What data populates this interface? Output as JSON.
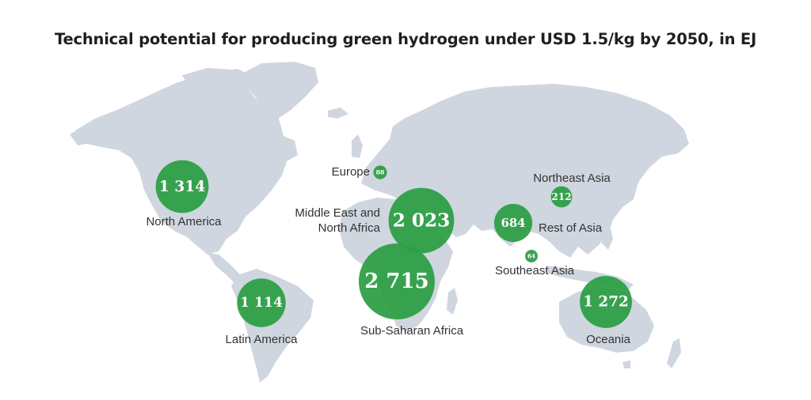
{
  "title": "Technical potential for producing green hydrogen under USD 1.5/kg by 2050, in EJ",
  "colors": {
    "land": "#cfd6df",
    "bubble": "#2e9e45",
    "bubble_overlap": "#2a8f3e",
    "text": "#333333"
  },
  "regions": [
    {
      "key": "north-america",
      "name": [
        "North America"
      ],
      "value": 1314,
      "label": "1 314"
    },
    {
      "key": "latin-america",
      "name": [
        "Latin America"
      ],
      "value": 1114,
      "label": "1 114"
    },
    {
      "key": "europe",
      "name": [
        "Europe"
      ],
      "value": 88,
      "label": "88"
    },
    {
      "key": "mena",
      "name": [
        "Middle East and",
        "North Africa"
      ],
      "value": 2023,
      "label": "2 023"
    },
    {
      "key": "sub-saharan-africa",
      "name": [
        "Sub-Saharan Africa"
      ],
      "value": 2715,
      "label": "2 715"
    },
    {
      "key": "northeast-asia",
      "name": [
        "Northeast Asia"
      ],
      "value": 212,
      "label": "212"
    },
    {
      "key": "rest-of-asia",
      "name": [
        "Rest of Asia"
      ],
      "value": 684,
      "label": "684"
    },
    {
      "key": "southeast-asia",
      "name": [
        "Southeast Asia"
      ],
      "value": 64,
      "label": "64"
    },
    {
      "key": "oceania",
      "name": [
        "Oceania"
      ],
      "value": 1272,
      "label": "1 272"
    }
  ]
}
